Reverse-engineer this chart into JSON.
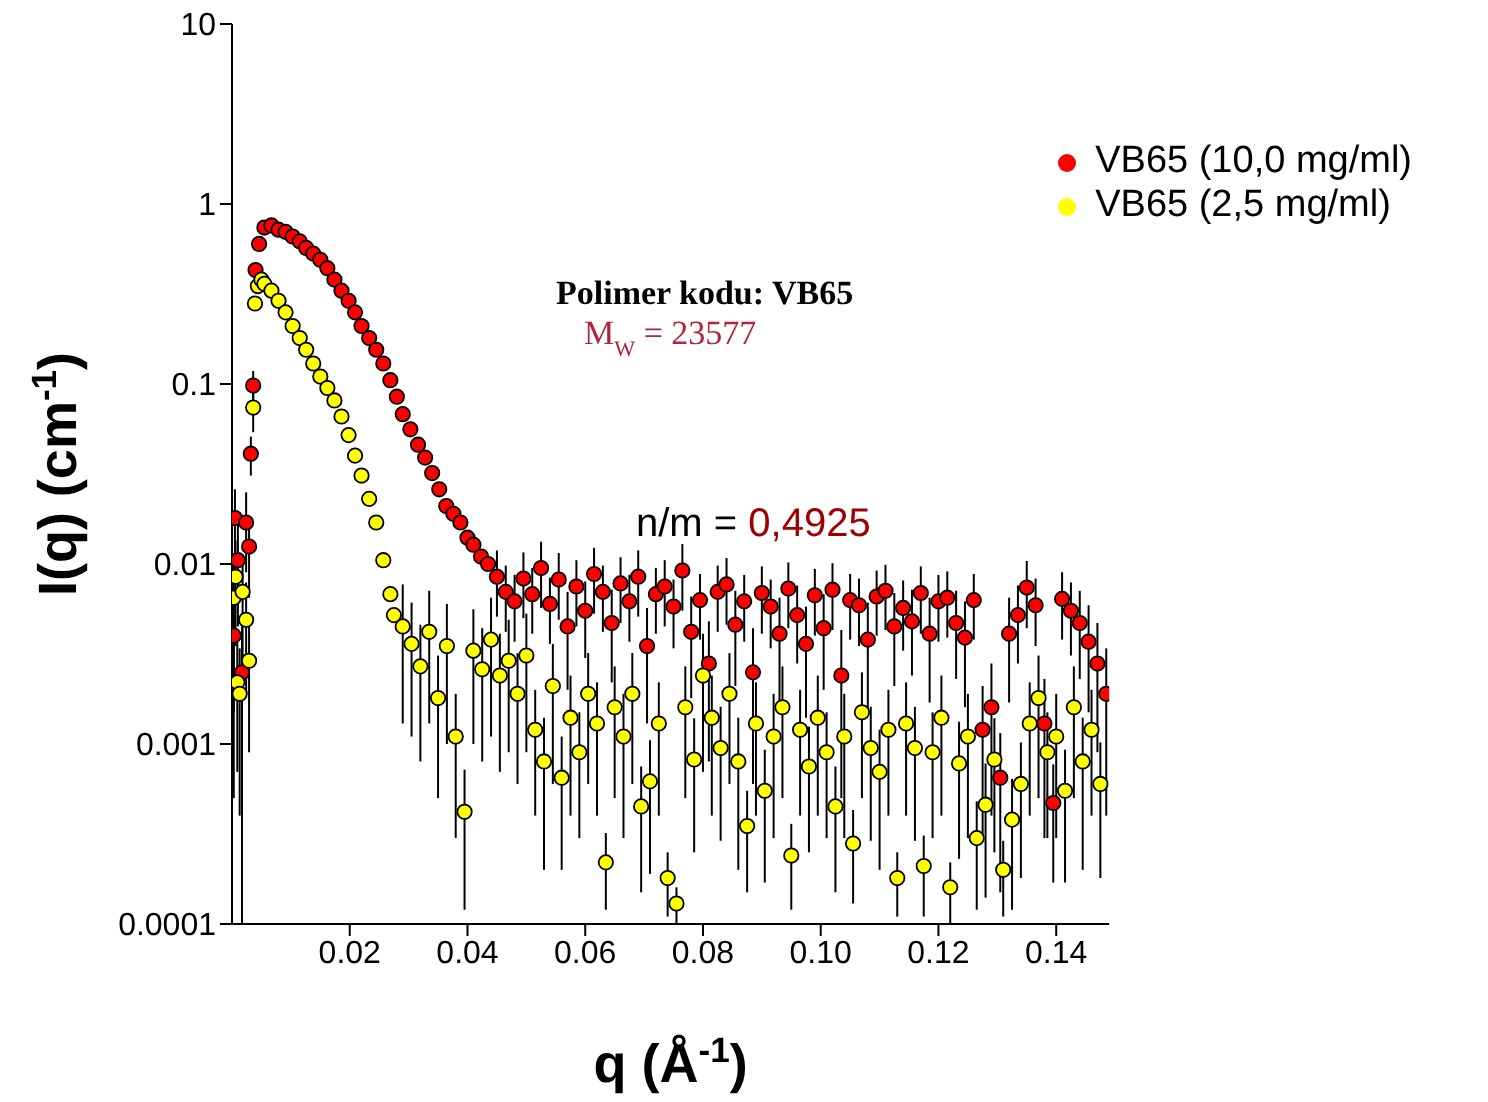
{
  "chart_data": {
    "type": "scatter",
    "xlabel": "q (Å$^{-1}$)",
    "ylabel": "I(q) (cm$^{-1}$)",
    "log": "y",
    "xlim": [
      0,
      0.149
    ],
    "xticks": [
      0.02,
      0.04,
      0.06,
      0.08,
      {
        "value": 0.1,
        "label": "0.10"
      },
      0.12,
      0.14
    ],
    "ylim": [
      0.0001,
      10
    ],
    "yticks": [
      0.0001,
      0.001,
      0.01,
      0.1,
      1,
      10
    ],
    "legend": "top right",
    "marker": "circle",
    "annotations": [
      "Polimer kodu: VB65",
      "M$_{W}$ = 23577",
      "n/m = 0,4925"
    ],
    "series": [
      {
        "name": "VB65 (10,0 mg/ml)",
        "color": "#ff0000",
        "x": [
          0.0003,
          0.0005,
          0.001,
          0.0017,
          0.0024,
          0.0029,
          0.0032,
          0.0036,
          0.004,
          0.0046,
          0.0055,
          0.0067,
          0.0079,
          0.0091,
          0.0103,
          0.0115,
          0.0126,
          0.0138,
          0.015,
          0.0162,
          0.0174,
          0.0186,
          0.0198,
          0.0209,
          0.022,
          0.0233,
          0.0245,
          0.0257,
          0.0269,
          0.028,
          0.029,
          0.0303,
          0.0316,
          0.0328,
          0.034,
          0.0352,
          0.0364,
          0.0376,
          0.0388,
          0.04,
          0.041,
          0.0423,
          0.0435,
          0.045,
          0.0465,
          0.048,
          0.0495,
          0.051,
          0.0525,
          0.054,
          0.0555,
          0.057,
          0.0585,
          0.06,
          0.0615,
          0.063,
          0.0645,
          0.066,
          0.0675,
          0.069,
          0.0705,
          0.072,
          0.0735,
          0.075,
          0.0765,
          0.078,
          0.0795,
          0.081,
          0.0825,
          0.084,
          0.0855,
          0.087,
          0.0885,
          0.09,
          0.0915,
          0.093,
          0.0945,
          0.096,
          0.0975,
          0.099,
          0.1005,
          0.102,
          0.1035,
          0.105,
          0.1065,
          0.108,
          0.1095,
          0.111,
          0.1125,
          0.114,
          0.1155,
          0.117,
          0.1185,
          0.12,
          0.1215,
          0.123,
          0.1245,
          0.126,
          0.1275,
          0.129,
          0.1305,
          0.132,
          0.1335,
          0.135,
          0.1365,
          0.138,
          0.1395,
          0.141,
          0.1425,
          0.144,
          0.1455,
          0.147,
          0.1485
        ],
        "values": [
          0.004,
          0.018,
          0.0105,
          0.0025,
          0.017,
          0.0125,
          0.041,
          0.098,
          0.43,
          0.6,
          0.74,
          0.76,
          0.72,
          0.7,
          0.66,
          0.62,
          0.57,
          0.53,
          0.49,
          0.44,
          0.38,
          0.33,
          0.29,
          0.25,
          0.21,
          0.18,
          0.155,
          0.13,
          0.105,
          0.085,
          0.068,
          0.056,
          0.046,
          0.039,
          0.032,
          0.026,
          0.021,
          0.019,
          0.017,
          0.014,
          0.0128,
          0.011,
          0.01,
          0.0085,
          0.007,
          0.0062,
          0.0083,
          0.0068,
          0.0095,
          0.006,
          0.0082,
          0.0045,
          0.0075,
          0.0055,
          0.0088,
          0.007,
          0.0047,
          0.0078,
          0.0062,
          0.0085,
          0.0035,
          0.0068,
          0.0075,
          0.0058,
          0.0092,
          0.0042,
          0.0063,
          0.0028,
          0.007,
          0.0077,
          0.0046,
          0.0062,
          0.0025,
          0.0069,
          0.0058,
          0.0041,
          0.0073,
          0.0052,
          0.0036,
          0.0067,
          0.0044,
          0.0072,
          0.0024,
          0.0063,
          0.0059,
          0.0038,
          0.0066,
          0.0071,
          0.0045,
          0.0057,
          0.0048,
          0.0069,
          0.0041,
          0.0062,
          0.0065,
          0.0047,
          0.0039,
          0.0063,
          0.0012,
          0.0016,
          0.00065,
          0.0041,
          0.0052,
          0.0074,
          0.0059,
          0.0013,
          0.00047,
          0.0064,
          0.0055,
          0.0047,
          0.0037,
          0.0028,
          0.0019
        ],
        "errors": [
          0.0035,
          0.008,
          0.006,
          0.0024,
          0.008,
          0.006,
          0.01,
          0.02,
          null,
          null,
          null,
          null,
          null,
          null,
          null,
          null,
          null,
          null,
          null,
          null,
          null,
          null,
          null,
          null,
          null,
          null,
          null,
          null,
          null,
          null,
          null,
          null,
          null,
          null,
          null,
          null,
          null,
          null,
          null,
          null,
          null,
          null,
          null,
          0.0034,
          0.0028,
          0.0025,
          0.0033,
          0.0027,
          0.0038,
          0.0024,
          0.0033,
          0.0025,
          0.003,
          0.0025,
          0.0035,
          0.0028,
          0.0025,
          0.0031,
          0.0025,
          0.0034,
          0.0022,
          0.0027,
          0.003,
          0.0024,
          0.0037,
          0.0024,
          0.0025,
          0.002,
          0.0028,
          0.0031,
          0.0025,
          0.0025,
          0.0019,
          0.0028,
          0.0024,
          0.0024,
          0.0029,
          0.0024,
          0.0022,
          0.0027,
          0.0024,
          0.0029,
          0.0019,
          0.0025,
          0.0024,
          0.0023,
          0.0026,
          0.0028,
          0.0024,
          0.0024,
          0.0024,
          0.0028,
          0.0024,
          0.0025,
          0.0026,
          0.0024,
          0.0023,
          0.0025,
          0.0009,
          0.0012,
          0.0005,
          0.0024,
          0.0024,
          0.003,
          0.0024,
          0.001,
          0.0003,
          0.0026,
          0.0024,
          0.0024,
          0.0022,
          0.0019,
          0.0015
        ]
      },
      {
        "name": "VB65 (2,5 mg/ml)",
        "color": "#ffff00",
        "x": [
          0.0003,
          0.0006,
          0.0009,
          0.0013,
          0.0018,
          0.0024,
          0.0029,
          0.0036,
          0.0039,
          0.0044,
          0.005,
          0.0055,
          0.0067,
          0.0079,
          0.0091,
          0.0103,
          0.0115,
          0.0126,
          0.0138,
          0.015,
          0.0162,
          0.0174,
          0.0186,
          0.0198,
          0.0209,
          0.022,
          0.0233,
          0.0245,
          0.0257,
          0.0269,
          0.0275,
          0.029,
          0.0305,
          0.032,
          0.0335,
          0.035,
          0.0365,
          0.038,
          0.0395,
          0.041,
          0.0425,
          0.044,
          0.0455,
          0.047,
          0.0485,
          0.05,
          0.0515,
          0.053,
          0.0545,
          0.056,
          0.0575,
          0.059,
          0.0605,
          0.062,
          0.0635,
          0.065,
          0.0665,
          0.068,
          0.0695,
          0.071,
          0.0725,
          0.074,
          0.0755,
          0.077,
          0.0785,
          0.08,
          0.0815,
          0.083,
          0.0845,
          0.086,
          0.0875,
          0.089,
          0.0905,
          0.092,
          0.0935,
          0.095,
          0.0965,
          0.098,
          0.0995,
          0.101,
          0.1025,
          0.104,
          0.1055,
          0.107,
          0.1085,
          0.11,
          0.1115,
          0.113,
          0.1145,
          0.116,
          0.1175,
          0.119,
          0.1205,
          0.122,
          0.1235,
          0.125,
          0.1265,
          0.128,
          0.1295,
          0.131,
          0.1325,
          0.134,
          0.1355,
          0.137,
          0.1385,
          0.14,
          0.1415,
          0.143,
          0.1445,
          0.146,
          0.1475
        ],
        "values": [
          0.0065,
          0.0085,
          0.0022,
          0.0019,
          0.007,
          0.0049,
          0.0029,
          0.074,
          0.28,
          0.35,
          0.38,
          0.36,
          0.33,
          0.29,
          0.25,
          0.21,
          0.18,
          0.155,
          0.13,
          0.11,
          0.095,
          0.081,
          0.066,
          0.052,
          0.04,
          0.031,
          0.023,
          0.017,
          0.0105,
          0.0068,
          0.0052,
          0.0045,
          0.0036,
          0.0027,
          0.0042,
          0.0018,
          0.0035,
          0.0011,
          0.00042,
          0.0033,
          0.0026,
          0.0038,
          0.0024,
          0.0029,
          0.0019,
          0.0031,
          0.0012,
          0.0008,
          0.0021,
          0.00065,
          0.0014,
          0.0009,
          0.0019,
          0.0013,
          0.00022,
          0.0016,
          0.0011,
          0.0019,
          0.00045,
          0.00062,
          0.0013,
          0.00018,
          0.00013,
          0.0016,
          0.00082,
          0.0024,
          0.0014,
          0.00095,
          0.0019,
          0.0008,
          0.00035,
          0.0013,
          0.00055,
          0.0011,
          0.0016,
          0.00024,
          0.0012,
          0.00075,
          0.0014,
          0.0009,
          0.00045,
          0.0011,
          0.00028,
          0.0015,
          0.00095,
          0.0007,
          0.0012,
          0.00018,
          0.0013,
          0.00095,
          0.00021,
          0.0009,
          0.0014,
          0.00016,
          0.00078,
          0.0011,
          0.0003,
          0.00046,
          0.00082,
          0.0002,
          0.00038,
          0.0006,
          0.0013,
          0.0018,
          0.0009,
          0.0011,
          0.00055,
          0.0016,
          0.0008,
          0.0012,
          0.0006
        ],
        "errors": [
          0.005,
          0.005,
          0.0015,
          0.0015,
          0.004,
          0.003,
          0.002,
          0.02,
          null,
          null,
          null,
          null,
          null,
          null,
          null,
          null,
          null,
          null,
          null,
          null,
          null,
          null,
          null,
          null,
          null,
          null,
          null,
          null,
          null,
          null,
          null,
          0.0032,
          0.0025,
          0.0019,
          0.0029,
          0.0013,
          0.0025,
          0.0008,
          0.0003,
          0.0023,
          0.0018,
          0.0027,
          0.0017,
          0.002,
          0.0013,
          0.0022,
          0.0008,
          0.0006,
          0.0015,
          0.00045,
          0.001,
          0.0006,
          0.0013,
          0.0009,
          0.0001,
          0.0011,
          0.0008,
          0.0013,
          0.0003,
          0.00043,
          0.0009,
          7e-05,
          3e-05,
          0.0011,
          0.00057,
          0.0017,
          0.001,
          0.00066,
          0.0013,
          0.0006,
          0.0002,
          0.0009,
          0.00038,
          0.0008,
          0.0011,
          0.00012,
          0.0008,
          0.0005,
          0.001,
          0.0006,
          0.0003,
          0.0008,
          0.00015,
          0.001,
          0.00066,
          0.0005,
          0.0008,
          7e-05,
          0.0009,
          0.00066,
          0.0001,
          0.0006,
          0.001,
          6e-05,
          0.00055,
          0.0008,
          0.00018,
          0.00032,
          0.00057,
          9e-05,
          0.00026,
          0.00042,
          0.0009,
          0.0013,
          0.0006,
          0.0008,
          0.00038,
          0.0011,
          0.0006,
          0.0008,
          0.00042
        ]
      }
    ]
  }
}
